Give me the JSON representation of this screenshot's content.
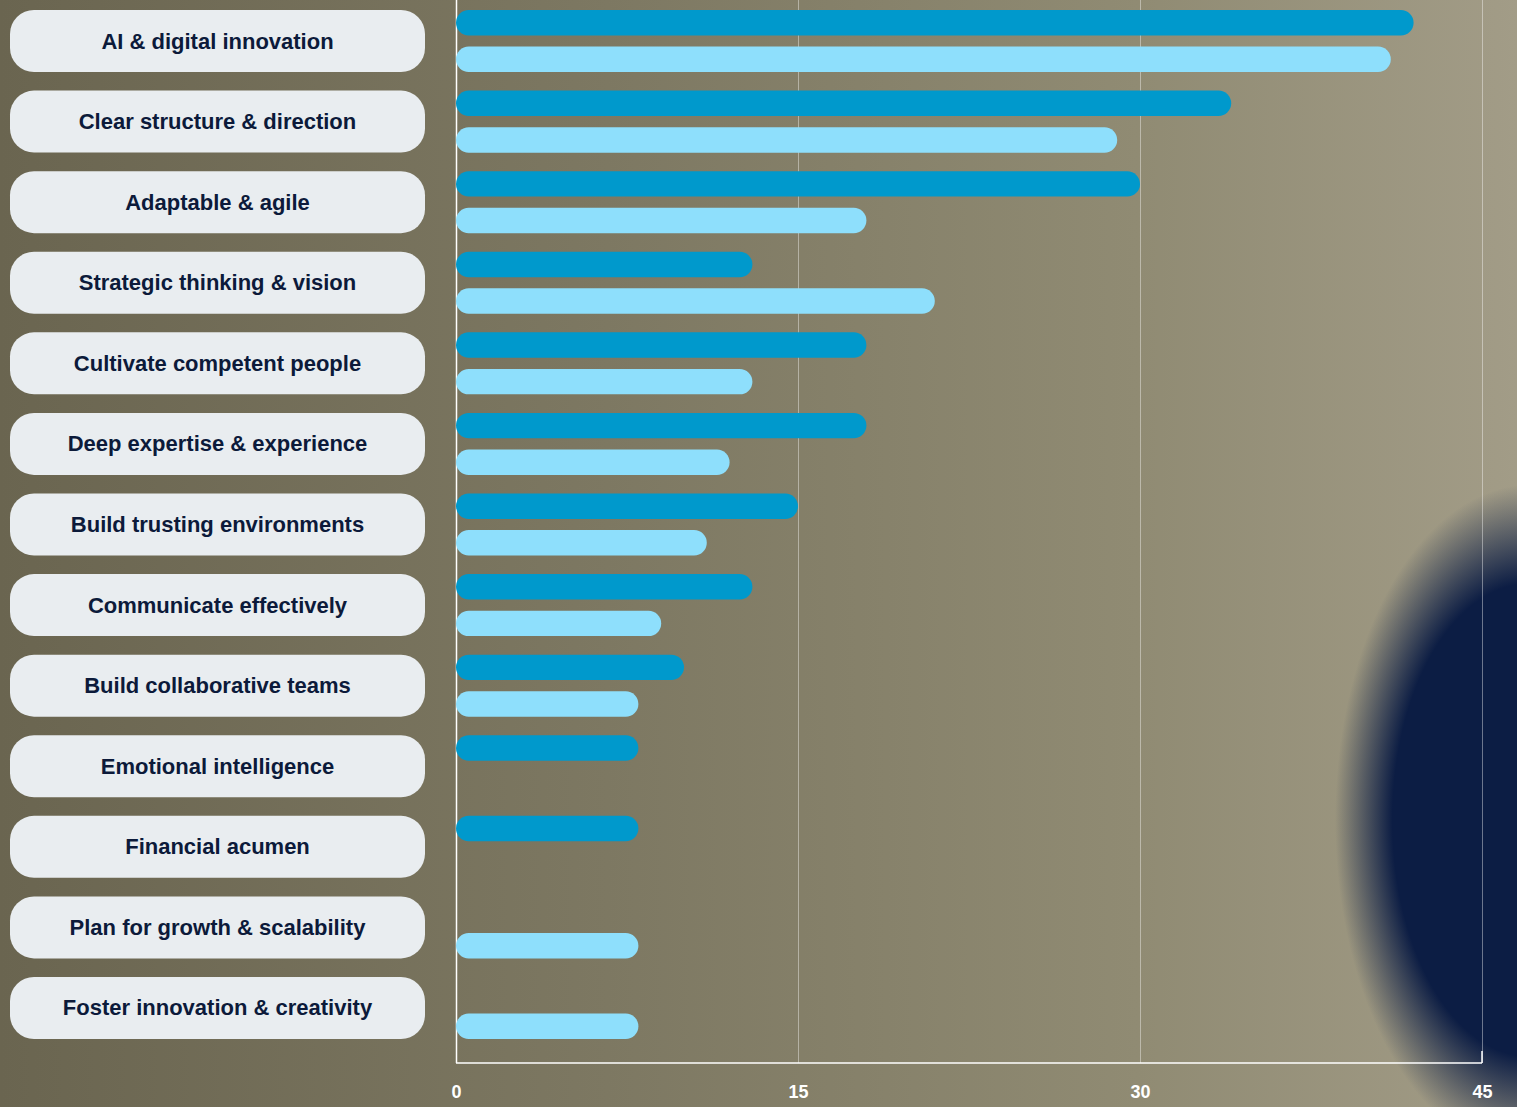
{
  "chart_data": {
    "type": "bar",
    "orientation": "horizontal",
    "categories": [
      "AI & digital innovation",
      "Clear structure & direction",
      "Adaptable & agile",
      "Strategic thinking & vision",
      "Cultivate competent people",
      "Deep expertise & experience",
      "Build trusting environments",
      "Communicate effectively",
      "Build collaborative teams",
      "Emotional intelligence",
      "Financial acumen",
      "Plan for growth & scalability",
      "Foster innovation & creativity"
    ],
    "series": [
      {
        "color": "#0099cc",
        "values": [
          42,
          34,
          30,
          13,
          18,
          18,
          15,
          13,
          10,
          8,
          8,
          null,
          null
        ]
      },
      {
        "color": "#8edffc",
        "values": [
          41,
          29,
          18,
          21,
          13,
          12,
          11,
          9,
          8,
          null,
          null,
          8,
          8
        ]
      }
    ],
    "xlim": [
      0,
      45
    ],
    "xticks": [
      0,
      15,
      30,
      45
    ],
    "grid": true
  }
}
